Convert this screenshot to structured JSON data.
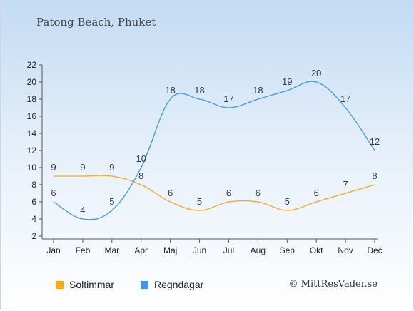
{
  "chart_data": {
    "type": "line",
    "title": "Patong Beach, Phuket",
    "categories": [
      "Jan",
      "Feb",
      "Mar",
      "Apr",
      "Maj",
      "Jun",
      "Jul",
      "Aug",
      "Sep",
      "Okt",
      "Nov",
      "Dec"
    ],
    "ylim": [
      2,
      22
    ],
    "yticks": [
      2,
      4,
      6,
      8,
      10,
      12,
      14,
      16,
      18,
      20,
      22
    ],
    "series": [
      {
        "name": "Soltimmar",
        "color": "#f5a623",
        "values": [
          9,
          9,
          9,
          8,
          6,
          5,
          6,
          6,
          5,
          6,
          7,
          8
        ]
      },
      {
        "name": "Regndagar",
        "color": "#3a99e8",
        "values": [
          6,
          4,
          5,
          10,
          18,
          18,
          17,
          18,
          19,
          20,
          17,
          12
        ]
      }
    ],
    "legend_position": "bottom"
  },
  "copyright": "© MittResVader.se"
}
